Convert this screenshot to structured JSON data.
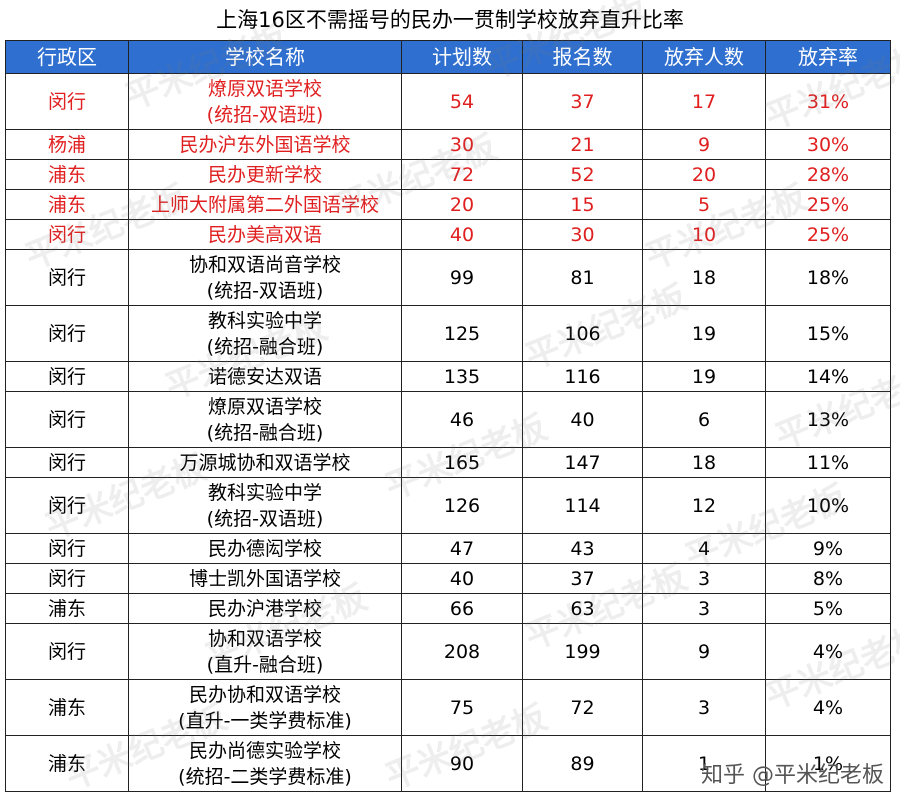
{
  "title": "上海16区不需摇号的民办一贯制学校放弃直升比率",
  "headers": [
    "行政区",
    "学校名称",
    "计划数",
    "报名数",
    "放弃人数",
    "放弃率"
  ],
  "rows": [
    {
      "district": "闵行",
      "school": [
        "燎原双语学校",
        "(统招-双语班)"
      ],
      "plan": "54",
      "applied": "37",
      "gave_up": "17",
      "rate": "31%",
      "highlight": true
    },
    {
      "district": "杨浦",
      "school": [
        "民办沪东外国语学校"
      ],
      "plan": "30",
      "applied": "21",
      "gave_up": "9",
      "rate": "30%",
      "highlight": true
    },
    {
      "district": "浦东",
      "school": [
        "民办更新学校"
      ],
      "plan": "72",
      "applied": "52",
      "gave_up": "20",
      "rate": "28%",
      "highlight": true
    },
    {
      "district": "浦东",
      "school": [
        "上师大附属第二外国语学校"
      ],
      "plan": "20",
      "applied": "15",
      "gave_up": "5",
      "rate": "25%",
      "highlight": true
    },
    {
      "district": "闵行",
      "school": [
        "民办美高双语"
      ],
      "plan": "40",
      "applied": "30",
      "gave_up": "10",
      "rate": "25%",
      "highlight": true
    },
    {
      "district": "闵行",
      "school": [
        "协和双语尚音学校",
        "(统招-双语班)"
      ],
      "plan": "99",
      "applied": "81",
      "gave_up": "18",
      "rate": "18%",
      "highlight": false
    },
    {
      "district": "闵行",
      "school": [
        "教科实验中学",
        "(统招-融合班)"
      ],
      "plan": "125",
      "applied": "106",
      "gave_up": "19",
      "rate": "15%",
      "highlight": false
    },
    {
      "district": "闵行",
      "school": [
        "诺德安达双语"
      ],
      "plan": "135",
      "applied": "116",
      "gave_up": "19",
      "rate": "14%",
      "highlight": false
    },
    {
      "district": "闵行",
      "school": [
        "燎原双语学校",
        "(统招-融合班)"
      ],
      "plan": "46",
      "applied": "40",
      "gave_up": "6",
      "rate": "13%",
      "highlight": false
    },
    {
      "district": "闵行",
      "school": [
        "万源城协和双语学校"
      ],
      "plan": "165",
      "applied": "147",
      "gave_up": "18",
      "rate": "11%",
      "highlight": false
    },
    {
      "district": "闵行",
      "school": [
        "教科实验中学",
        "(统招-双语班)"
      ],
      "plan": "126",
      "applied": "114",
      "gave_up": "12",
      "rate": "10%",
      "highlight": false
    },
    {
      "district": "闵行",
      "school": [
        "民办德闳学校"
      ],
      "plan": "47",
      "applied": "43",
      "gave_up": "4",
      "rate": "9%",
      "highlight": false
    },
    {
      "district": "闵行",
      "school": [
        "博士凯外国语学校"
      ],
      "plan": "40",
      "applied": "37",
      "gave_up": "3",
      "rate": "8%",
      "highlight": false
    },
    {
      "district": "浦东",
      "school": [
        "民办沪港学校"
      ],
      "plan": "66",
      "applied": "63",
      "gave_up": "3",
      "rate": "5%",
      "highlight": false
    },
    {
      "district": "闵行",
      "school": [
        "协和双语学校",
        "(直升-融合班)"
      ],
      "plan": "208",
      "applied": "199",
      "gave_up": "9",
      "rate": "4%",
      "highlight": false
    },
    {
      "district": "浦东",
      "school": [
        "民办协和双语学校",
        "(直升-一类学费标准)"
      ],
      "plan": "75",
      "applied": "72",
      "gave_up": "3",
      "rate": "4%",
      "highlight": false
    },
    {
      "district": "浦东",
      "school": [
        "民办尚德实验学校",
        "(统招-二类学费标准)"
      ],
      "plan": "90",
      "applied": "89",
      "gave_up": "1",
      "rate": "1%",
      "highlight": false
    }
  ],
  "watermark": "平米纪老板",
  "credit": "知乎 @平米纪老板"
}
